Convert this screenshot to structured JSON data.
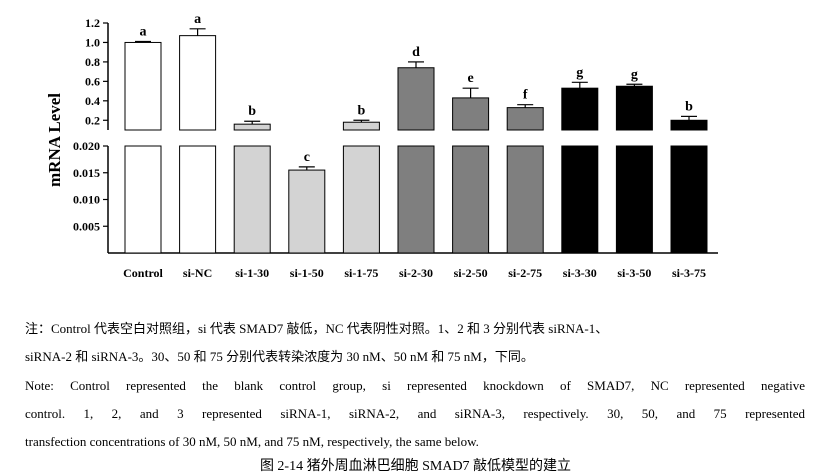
{
  "chart_data": {
    "type": "bar",
    "ylabel": "mRNA  Level",
    "categories": [
      "Control",
      "si-NC",
      "si-1-30",
      "si-1-50",
      "si-1-75",
      "si-2-30",
      "si-2-50",
      "si-2-75",
      "si-3-30",
      "si-3-50",
      "si-3-75"
    ],
    "values": [
      1.0,
      1.07,
      0.16,
      0.0155,
      0.18,
      0.74,
      0.43,
      0.33,
      0.53,
      0.55,
      0.2
    ],
    "errors": [
      0.01,
      0.07,
      0.03,
      0.0006,
      0.02,
      0.06,
      0.1,
      0.03,
      0.06,
      0.02,
      0.04
    ],
    "letters": [
      "a",
      "a",
      "b",
      "c",
      "b",
      "d",
      "e",
      "f",
      "g",
      "g",
      "b"
    ],
    "colors": [
      "#ffffff",
      "#ffffff",
      "#d3d3d3",
      "#d3d3d3",
      "#d3d3d3",
      "#7f7f7f",
      "#7f7f7f",
      "#7f7f7f",
      "#000000",
      "#000000",
      "#000000"
    ],
    "broken_axis": true,
    "upper_ylim": [
      0.1,
      1.2
    ],
    "upper_ticks": [
      "0.2",
      "0.4",
      "0.6",
      "0.8",
      "1.0",
      "1.2"
    ],
    "lower_ylim": [
      0.0,
      0.02
    ],
    "lower_ticks": [
      "0.005",
      "0.010",
      "0.015",
      "0.020"
    ],
    "grid": false,
    "legend": "none"
  },
  "notes": {
    "zh_line1": "注：Control 代表空白对照组，si 代表 SMAD7 敲低，NC 代表阴性对照。1、2 和 3 分别代表 siRNA-1、",
    "zh_line2": "siRNA-2 和 siRNA-3。30、50 和 75 分别代表转染浓度为 30 nM、50 nM 和 75 nM，下同。",
    "en_line1": "Note: Control represented the blank control group, si represented knockdown of SMAD7, NC represented negative",
    "en_line2": "control. 1, 2, and 3 represented siRNA-1, siRNA-2, and siRNA-3, respectively. 30, 50, and 75 represented",
    "en_line3": "transfection concentrations of 30 nM, 50 nM, and 75 nM, respectively, the same below."
  },
  "figure_title": "图 2-14  猪外周血淋巴细胞 SMAD7 敲低模型的建立"
}
